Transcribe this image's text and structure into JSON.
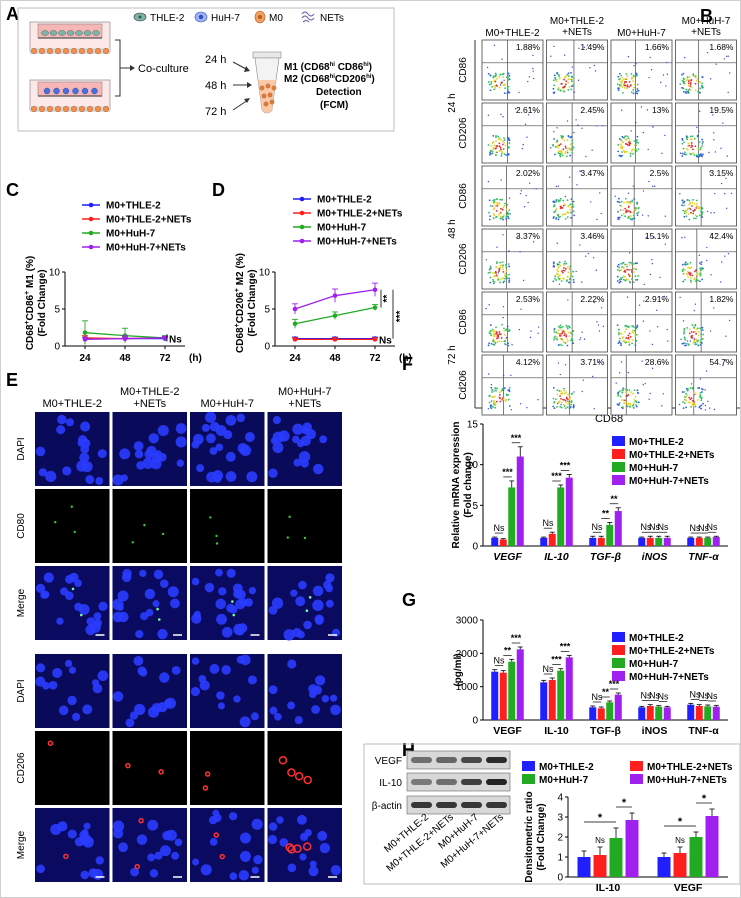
{
  "panel_letters": [
    "A",
    "B",
    "C",
    "D",
    "E",
    "F",
    "G",
    "H"
  ],
  "panelA": {
    "legend": [
      "THLE-2",
      "HuH-7",
      "M0",
      "NETs"
    ],
    "coculture_label": "Co-culture",
    "timepoints": [
      "24 h",
      "48 h",
      "72 h"
    ],
    "m1_text": "M1 (CD68",
    "m1_sup1": "hi",
    "m1_mid": " CD86",
    "m1_sup2": "hi",
    "m1_end": ")",
    "m2_text": "M2 (CD68",
    "m2_sup1": "hi",
    "m2_mid": "CD206",
    "m2_sup2": "hi",
    "m2_end": ")",
    "detection": "Detection",
    "fcm": "(FCM)",
    "colors": {
      "thle": "#7fb3a8",
      "huh": "#4a6fd8",
      "m0": "#e58a3a",
      "nets": "#6a5aa8"
    }
  },
  "panelB": {
    "col_headers": [
      [
        "M0+THLE-2"
      ],
      [
        "M0+THLE-2",
        "+NETs"
      ],
      [
        "M0+HuH-7"
      ],
      [
        "M0+HuH-7",
        "+NETs"
      ]
    ],
    "row_labels": [
      "CD86",
      "CD206",
      "CD86",
      "CD206",
      "CD86",
      "Cd206"
    ],
    "time_labels": [
      "24 h",
      "48 h",
      "72 h"
    ],
    "xlabel": "CD68",
    "percents": [
      [
        "1.88%",
        "1.49%",
        "1.66%",
        "1.68%"
      ],
      [
        "2.61%",
        "2.45%",
        "13%",
        "19.5%"
      ],
      [
        "2.02%",
        "3.47%",
        "2.5%",
        "3.15%"
      ],
      [
        "3.37%",
        "3.46%",
        "15.1%",
        "42.4%"
      ],
      [
        "2.53%",
        "2.22%",
        "2.91%",
        "1.82%"
      ],
      [
        "4.12%",
        "3.71%",
        "28.6%",
        "54.7%"
      ]
    ]
  },
  "legend_series": [
    "M0+THLE-2",
    "M0+THLE-2+NETs",
    "M0+HuH-7",
    "M0+HuH-7+NETs"
  ],
  "series_colors": [
    "#1f1fff",
    "#ff1f1f",
    "#22aa22",
    "#a020f0"
  ],
  "panelE": {
    "col_headers": [
      [
        "M0+THLE-2"
      ],
      [
        "M0+THLE-2",
        "+NETs"
      ],
      [
        "M0+HuH-7"
      ],
      [
        "M0+HuH-7",
        "+NETs"
      ]
    ],
    "row_labels": [
      "DAPI",
      "CD80",
      "Merge",
      "DAPI",
      "CD206",
      "Merge"
    ]
  },
  "chart_data": [
    {
      "panel": "C",
      "type": "line",
      "x": [
        24,
        48,
        72
      ],
      "xlabel": "(h)",
      "ylabel_parts": [
        "CD68",
        "+",
        "CD86",
        "+",
        " M1 (%)"
      ],
      "ylabel2": "(Fold Change)",
      "ylim": [
        0,
        10
      ],
      "yticks": [
        0,
        5,
        10
      ],
      "series": [
        {
          "name": "M0+THLE-2",
          "values": [
            1.0,
            1.0,
            1.0
          ],
          "err": [
            0.2,
            0.2,
            0.2
          ]
        },
        {
          "name": "M0+THLE-2+NETs",
          "values": [
            1.1,
            1.0,
            1.1
          ],
          "err": [
            0.3,
            0.3,
            0.2
          ]
        },
        {
          "name": "M0+HuH-7",
          "values": [
            1.8,
            1.4,
            1.1
          ],
          "err": [
            1.6,
            1.0,
            0.3
          ]
        },
        {
          "name": "M0+HuH-7+NETs",
          "values": [
            0.9,
            1.0,
            1.1
          ],
          "err": [
            0.3,
            0.4,
            0.2
          ]
        }
      ],
      "annotations": [
        "Ns"
      ]
    },
    {
      "panel": "D",
      "type": "line",
      "x": [
        24,
        48,
        72
      ],
      "xlabel": "(h)",
      "ylabel_parts": [
        "CD68",
        "+",
        "CD206",
        "+",
        " M2 (%)"
      ],
      "ylabel2": "(Fold Change)",
      "ylim": [
        0,
        10
      ],
      "yticks": [
        0,
        5,
        10
      ],
      "series": [
        {
          "name": "M0+THLE-2",
          "values": [
            1.0,
            1.0,
            1.0
          ],
          "err": [
            0.2,
            0.2,
            0.2
          ]
        },
        {
          "name": "M0+THLE-2+NETs",
          "values": [
            0.9,
            0.9,
            0.9
          ],
          "err": [
            0.2,
            0.2,
            0.2
          ]
        },
        {
          "name": "M0+HuH-7",
          "values": [
            3.0,
            4.1,
            5.2
          ],
          "err": [
            0.6,
            0.5,
            0.4
          ]
        },
        {
          "name": "M0+HuH-7+NETs",
          "values": [
            5.0,
            6.8,
            7.6
          ],
          "err": [
            0.7,
            0.9,
            0.9
          ]
        }
      ],
      "annotations": [
        "**",
        "***",
        "Ns"
      ]
    },
    {
      "panel": "F",
      "type": "bar",
      "categories": [
        "VEGF",
        "IL-10",
        "TGF-β",
        "iNOS",
        "TNF-α"
      ],
      "ylabel": "Relative mRNA expression",
      "ylabel2": "(Fold change)",
      "ylim": [
        0,
        15
      ],
      "yticks": [
        0,
        5,
        10,
        15
      ],
      "series": [
        {
          "name": "M0+THLE-2",
          "values": [
            1.0,
            1.0,
            1.0,
            1.0,
            1.0
          ],
          "err": [
            0.1,
            0.1,
            0.2,
            0.1,
            0.1
          ]
        },
        {
          "name": "M0+THLE-2+NETs",
          "values": [
            0.8,
            1.5,
            1.0,
            1.0,
            1.0
          ],
          "err": [
            0.1,
            0.2,
            0.2,
            0.2,
            0.1
          ]
        },
        {
          "name": "M0+HuH-7",
          "values": [
            7.2,
            7.2,
            2.6,
            1.0,
            1.0
          ],
          "err": [
            0.8,
            0.3,
            0.3,
            0.2,
            0.1
          ]
        },
        {
          "name": "M0+HuH-7+NETs",
          "values": [
            11.0,
            8.4,
            4.3,
            1.0,
            1.1
          ],
          "err": [
            1.2,
            0.4,
            0.4,
            0.2,
            0.1
          ]
        }
      ],
      "sig_top": [
        [
          "Ns",
          "***",
          "***"
        ],
        [
          "Ns",
          "***",
          "***"
        ],
        [
          "Ns",
          "**",
          "**"
        ],
        [
          "Ns",
          "Ns",
          "Ns"
        ],
        [
          "Ns",
          "Ns",
          "Ns"
        ]
      ]
    },
    {
      "panel": "G",
      "type": "bar",
      "categories": [
        "VEGF",
        "IL-10",
        "TGF-β",
        "iNOS",
        "TNF-α"
      ],
      "ylabel": "(pg/ml)",
      "ylim": [
        0,
        3000
      ],
      "yticks": [
        0,
        1000,
        2000,
        3000
      ],
      "series": [
        {
          "name": "M0+THLE-2",
          "values": [
            1450,
            1130,
            380,
            380,
            460
          ],
          "err": [
            60,
            60,
            40,
            30,
            40
          ]
        },
        {
          "name": "M0+THLE-2+NETs",
          "values": [
            1420,
            1200,
            350,
            420,
            420
          ],
          "err": [
            60,
            60,
            40,
            40,
            40
          ]
        },
        {
          "name": "M0+HuH-7",
          "values": [
            1750,
            1480,
            530,
            400,
            410
          ],
          "err": [
            70,
            60,
            40,
            30,
            40
          ]
        },
        {
          "name": "M0+HuH-7+NETs",
          "values": [
            2120,
            1880,
            760,
            380,
            400
          ],
          "err": [
            70,
            60,
            50,
            30,
            40
          ]
        }
      ],
      "sig_top": [
        [
          "Ns",
          "**",
          "***"
        ],
        [
          "Ns",
          "***",
          "***"
        ],
        [
          "Ns",
          "**",
          "***"
        ],
        [
          "Ns",
          "Ns",
          "Ns"
        ],
        [
          "Ns",
          "Ns",
          "Ns"
        ]
      ]
    },
    {
      "panel": "H",
      "type": "bar",
      "categories": [
        "IL-10",
        "VEGF"
      ],
      "ylabel": "Densitometric ratio",
      "ylabel2": "(Fold Change)",
      "ylim": [
        0,
        4
      ],
      "yticks": [
        0,
        1,
        2,
        3,
        4
      ],
      "series": [
        {
          "name": "M0+THLE-2",
          "values": [
            1.0,
            1.0
          ],
          "err": [
            0.3,
            0.2
          ]
        },
        {
          "name": "M0+THLE-2+NETs",
          "values": [
            1.1,
            1.2
          ],
          "err": [
            0.4,
            0.3
          ]
        },
        {
          "name": "M0+HuH-7",
          "values": [
            1.95,
            2.0
          ],
          "err": [
            0.5,
            0.25
          ]
        },
        {
          "name": "M0+HuH-7+NETs",
          "values": [
            2.85,
            3.05
          ],
          "err": [
            0.35,
            0.35
          ]
        }
      ],
      "sig": [
        "Ns",
        "*",
        "*"
      ]
    }
  ],
  "panelH": {
    "blot_labels": [
      "VEGF",
      "IL-10",
      "β-actin"
    ],
    "lane_labels": [
      "M0+THLE-2",
      "M0+THLE-2+NETs",
      "M0+HuH-7",
      "M0+HuH-7+NETs"
    ]
  }
}
